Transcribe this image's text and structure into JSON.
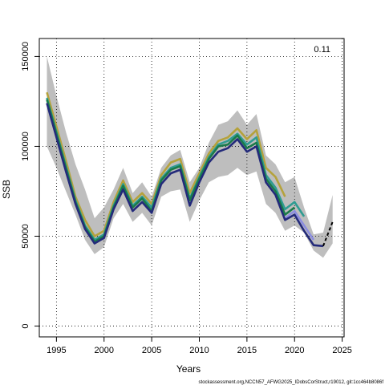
{
  "chart_data": {
    "type": "line",
    "title": "",
    "xlabel": "Years",
    "ylabel": "SSB",
    "xlim": [
      1993.2,
      2025.2
    ],
    "ylim": [
      -6000,
      160000
    ],
    "x_ticks": [
      1995,
      2000,
      2005,
      2010,
      2015,
      2020,
      2025
    ],
    "y_ticks": [
      0,
      50000,
      100000,
      150000
    ],
    "grid": true,
    "corner_label": "0.11",
    "footer": "stockassessment.org,NCCN57_AFWG2025_IDobsCorStruct,r19012, git:1cc464b8086f",
    "confidence_band": {
      "x": [
        1994,
        1995,
        1996,
        1997,
        1998,
        1999,
        2000,
        2001,
        2002,
        2003,
        2004,
        2005,
        2006,
        2007,
        2008,
        2009,
        2010,
        2011,
        2012,
        2013,
        2014,
        2015,
        2016,
        2017,
        2018,
        2019,
        2020,
        2021,
        2022,
        2023,
        2024
      ],
      "lower": [
        100000,
        88000,
        75000,
        62000,
        48000,
        40000,
        44000,
        60000,
        68000,
        58000,
        63000,
        56000,
        72000,
        75000,
        76000,
        58000,
        70000,
        80000,
        83000,
        84000,
        88000,
        84000,
        86000,
        68000,
        63000,
        53000,
        56000,
        52000,
        42000,
        38000,
        46000
      ],
      "upper": [
        150000,
        128000,
        108000,
        90000,
        76000,
        60000,
        66000,
        76000,
        88000,
        74000,
        80000,
        72000,
        88000,
        95000,
        98000,
        80000,
        88000,
        102000,
        112000,
        114000,
        120000,
        112000,
        118000,
        95000,
        90000,
        80000,
        83000,
        66000,
        51000,
        52000,
        73000
      ],
      "color": "#bebebe"
    },
    "series": [
      {
        "color": "#b5a23c",
        "x": [
          1994,
          1995,
          1996,
          1997,
          1998,
          1999,
          2000,
          2001,
          2002,
          2003,
          2004,
          2005,
          2006,
          2007,
          2008,
          2009,
          2010,
          2011,
          2012,
          2013,
          2014,
          2015,
          2016,
          2017,
          2018,
          2019
        ],
        "values": [
          130000,
          111000,
          92000,
          72000,
          59000,
          50000,
          53000,
          69000,
          81000,
          69000,
          74000,
          68000,
          84000,
          91000,
          93000,
          74000,
          85000,
          96000,
          103000,
          105000,
          110000,
          104000,
          109000,
          88000,
          83000,
          72000
        ]
      },
      {
        "color": "#2f9c92",
        "x": [
          1994,
          1995,
          1996,
          1997,
          1998,
          1999,
          2000,
          2001,
          2002,
          2003,
          2004,
          2005,
          2006,
          2007,
          2008,
          2009,
          2010,
          2011,
          2012,
          2013,
          2014,
          2015,
          2016,
          2017,
          2018,
          2019,
          2020,
          2021
        ],
        "values": [
          127000,
          108000,
          89000,
          70000,
          56000,
          48000,
          51000,
          67000,
          79000,
          67000,
          72000,
          66000,
          82000,
          88000,
          90000,
          71000,
          83000,
          94000,
          101000,
          103000,
          107000,
          101000,
          105000,
          84000,
          77000,
          65000,
          69000,
          61000
        ]
      },
      {
        "color": "#1a7a4a",
        "x": [
          1994,
          1995,
          1996,
          1997,
          1998,
          1999,
          2000,
          2001,
          2002,
          2003,
          2004,
          2005,
          2006,
          2007,
          2008,
          2009,
          2010,
          2011,
          2012,
          2013,
          2014,
          2015,
          2016,
          2017,
          2018,
          2019,
          2020
        ],
        "values": [
          126000,
          107000,
          88000,
          69000,
          55000,
          47000,
          50000,
          66000,
          78000,
          66000,
          71000,
          64000,
          81000,
          87000,
          89000,
          70000,
          82000,
          93000,
          100000,
          101000,
          106000,
          99000,
          102000,
          82000,
          75000,
          62000,
          66000
        ]
      },
      {
        "color": "#8c8ee0",
        "x": [
          2019,
          2020,
          2021,
          2022
        ],
        "values": [
          60000,
          64000,
          56000,
          48000
        ]
      },
      {
        "color": "#232a7a",
        "x": [
          1994,
          1995,
          1996,
          1997,
          1998,
          1999,
          2000,
          2001,
          2002,
          2003,
          2004,
          2005,
          2006,
          2007,
          2008,
          2009,
          2010,
          2011,
          2012,
          2013,
          2014,
          2015,
          2016,
          2017,
          2018,
          2019,
          2020,
          2021,
          2022,
          2023
        ],
        "values": [
          124000,
          105000,
          86000,
          68000,
          54000,
          46000,
          49000,
          65000,
          76000,
          64000,
          69000,
          63000,
          79000,
          85000,
          87000,
          67000,
          80000,
          91000,
          97000,
          99000,
          104000,
          97000,
          100000,
          80000,
          73000,
          59000,
          62000,
          53000,
          45000,
          44500
        ]
      },
      {
        "color": "#000000",
        "dashed": true,
        "x": [
          2023,
          2024
        ],
        "values": [
          44500,
          58000
        ]
      }
    ]
  }
}
